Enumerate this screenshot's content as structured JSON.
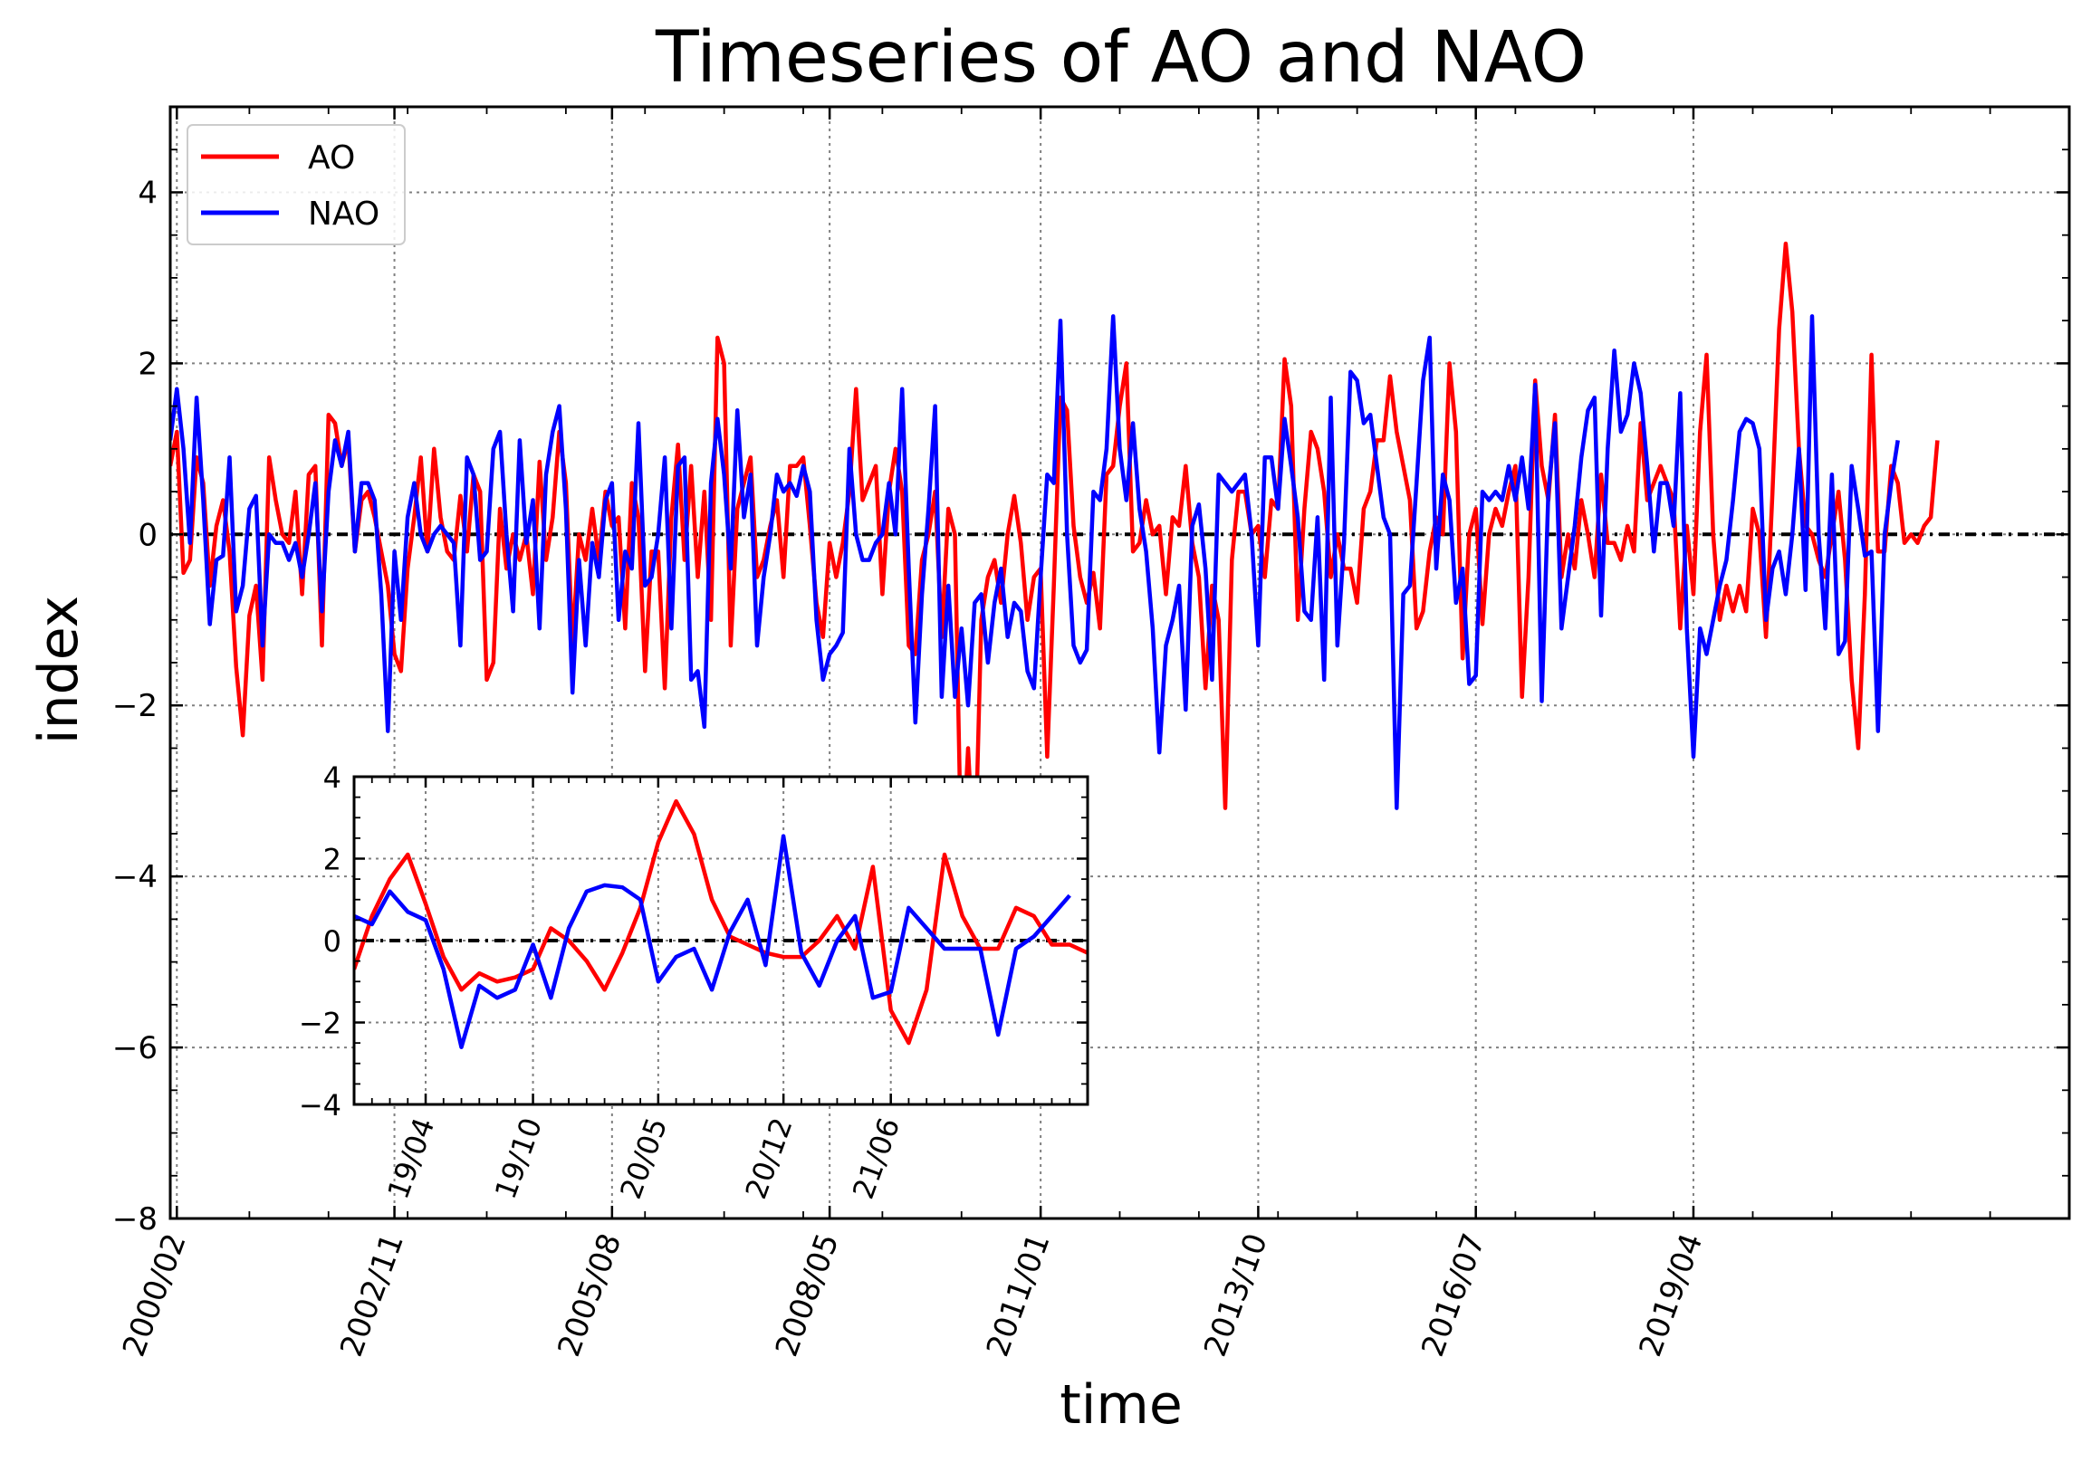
{
  "chart_data": [
    {
      "type": "line",
      "title": "Timeseries of AO and NAO",
      "xlabel": "time",
      "ylabel": "index",
      "xlim": [
        "2000-01",
        "2024-01"
      ],
      "ylim": [
        -8,
        5
      ],
      "yticks": [
        -8,
        -6,
        -4,
        -2,
        0,
        2,
        4
      ],
      "xticks": [
        "2000/02",
        "2002/11",
        "2005/08",
        "2008/05",
        "2011/01",
        "2013/10",
        "2016/07",
        "2019/04"
      ],
      "grid": true,
      "reference_line": 0,
      "legend": {
        "position": "top-left",
        "entries": [
          "AO",
          "NAO"
        ]
      },
      "colors": {
        "AO": "#ff0000",
        "NAO": "#0000ff",
        "reference": "#000000",
        "grid": "#808080"
      },
      "series": [
        {
          "name": "AO",
          "start": "2000-01",
          "frequency": "monthly",
          "values": [
            0.8,
            1.2,
            -0.45,
            -0.3,
            0.9,
            0.6,
            -0.6,
            0.1,
            0.4,
            -0.2,
            -1.55,
            -2.35,
            -0.95,
            -0.6,
            -1.7,
            0.9,
            0.4,
            0.0,
            -0.1,
            0.5,
            -0.7,
            0.7,
            0.8,
            -1.3,
            1.4,
            1.3,
            0.8,
            1.1,
            -0.2,
            0.4,
            0.5,
            0.2,
            -0.2,
            -0.6,
            -1.4,
            -1.6,
            -0.4,
            0.2,
            0.9,
            -0.2,
            1.0,
            0.2,
            -0.2,
            -0.3,
            0.45,
            -0.2,
            0.7,
            0.5,
            -1.7,
            -1.5,
            0.3,
            -0.4,
            0.0,
            -0.3,
            0.0,
            -0.7,
            0.85,
            -0.3,
            0.2,
            1.2,
            0.6,
            -1.3,
            0.0,
            -0.3,
            0.3,
            -0.3,
            0.5,
            0.1,
            0.2,
            -1.1,
            0.6,
            0.2,
            -1.6,
            -0.2,
            -0.2,
            -1.8,
            0.2,
            1.05,
            -0.3,
            0.8,
            -0.5,
            0.5,
            -1.0,
            2.3,
            2.0,
            -1.3,
            0.3,
            0.6,
            0.9,
            -0.5,
            -0.3,
            0.1,
            0.4,
            -0.5,
            0.8,
            0.8,
            0.9,
            0.1,
            -0.8,
            -1.2,
            -0.1,
            -0.5,
            -0.1,
            0.5,
            1.7,
            0.4,
            0.6,
            0.8,
            -0.7,
            0.5,
            1.0,
            0.5,
            -1.3,
            -1.4,
            -0.3,
            0.0,
            0.5,
            -1.2,
            0.3,
            0.0,
            -4.0,
            -2.5,
            -4.0,
            -1.0,
            -0.5,
            -0.3,
            -0.8,
            0.0,
            0.45,
            -0.1,
            -1.0,
            -0.5,
            -0.4,
            -2.6,
            -0.6,
            1.6,
            1.45,
            0.1,
            -0.5,
            -0.8,
            -0.45,
            -1.1,
            0.7,
            0.8,
            1.5,
            2.0,
            -0.2,
            -0.1,
            0.4,
            0.0,
            0.1,
            -0.7,
            0.2,
            0.1,
            0.8,
            -0.1,
            -0.5,
            -1.8,
            -0.6,
            -1.0,
            -3.2,
            -0.3,
            0.5,
            0.5,
            0.0,
            0.1,
            -0.5,
            0.4,
            0.3,
            2.05,
            1.5,
            -1.0,
            0.3,
            1.2,
            1.0,
            0.5,
            -0.5,
            0.0,
            -0.4,
            -0.4,
            -0.8,
            0.3,
            0.5,
            1.1,
            1.1,
            1.85,
            1.2,
            0.8,
            0.4,
            -1.1,
            -0.9,
            -0.2,
            0.2,
            0.0,
            2.0,
            1.2,
            -1.45,
            0.0,
            0.3,
            -1.05,
            0.0,
            0.3,
            0.1,
            0.5,
            0.8,
            -1.9,
            -0.5,
            1.8,
            0.8,
            0.4,
            1.4,
            -0.5,
            0.0,
            -0.4,
            0.4,
            0.0,
            -0.5,
            0.7,
            -0.1,
            -0.1,
            -0.3,
            0.1,
            -0.2,
            1.3,
            0.4,
            0.6,
            0.8,
            0.6,
            0.4,
            -1.1,
            0.1,
            -0.7,
            1.2,
            2.1,
            0.0,
            -1.0,
            -0.6,
            -0.9,
            -0.6,
            -0.9,
            0.3,
            0.0,
            -1.2,
            0.5,
            2.4,
            3.4,
            2.6,
            1.0,
            0.1,
            0.0,
            -0.3,
            -0.5,
            0.0,
            0.5,
            -0.3,
            -1.7,
            -2.5,
            -0.7,
            2.1,
            -0.2,
            -0.2,
            0.8,
            0.6,
            -0.1,
            0.0,
            -0.1,
            0.1,
            0.2,
            1.1
          ]
        },
        {
          "name": "NAO",
          "start": "2000-01",
          "frequency": "monthly",
          "values": [
            1.1,
            1.7,
            1.0,
            -0.1,
            1.6,
            0.4,
            -1.05,
            -0.3,
            -0.25,
            0.9,
            -0.9,
            -0.6,
            0.3,
            0.45,
            -1.3,
            0.0,
            -0.1,
            -0.1,
            -0.3,
            -0.1,
            -0.5,
            0.0,
            0.6,
            -0.9,
            0.5,
            1.1,
            0.8,
            1.2,
            -0.2,
            0.6,
            0.6,
            0.4,
            -0.7,
            -2.3,
            -0.2,
            -1.0,
            0.2,
            0.6,
            0.0,
            -0.2,
            0.0,
            0.1,
            0.0,
            -0.1,
            -1.3,
            0.9,
            0.7,
            -0.3,
            -0.2,
            1.0,
            1.2,
            0.0,
            -0.9,
            1.1,
            -0.1,
            0.4,
            -1.1,
            0.7,
            1.2,
            1.5,
            0.3,
            -1.85,
            -0.3,
            -1.3,
            -0.1,
            -0.5,
            0.4,
            0.6,
            -1.0,
            -0.2,
            -0.4,
            1.3,
            -0.6,
            -0.5,
            0.0,
            0.9,
            -1.1,
            0.8,
            0.9,
            -1.7,
            -1.6,
            -2.25,
            0.6,
            1.35,
            0.7,
            -0.4,
            1.45,
            0.2,
            0.7,
            -1.3,
            -0.5,
            0.0,
            0.7,
            0.5,
            0.6,
            0.45,
            0.8,
            0.5,
            -1.0,
            -1.7,
            -1.4,
            -1.3,
            -1.15,
            1.0,
            0.0,
            -0.3,
            -0.3,
            -0.1,
            0.0,
            0.6,
            0.0,
            1.7,
            -0.4,
            -2.2,
            -0.7,
            0.3,
            1.5,
            -1.9,
            -0.6,
            -1.9,
            -1.1,
            -2.0,
            -0.8,
            -0.7,
            -1.5,
            -0.8,
            -0.4,
            -1.2,
            -0.8,
            -0.9,
            -1.6,
            -1.8,
            -0.5,
            0.7,
            0.6,
            2.5,
            0.0,
            -1.3,
            -1.5,
            -1.35,
            0.5,
            0.4,
            1.0,
            2.55,
            1.0,
            0.4,
            1.3,
            0.3,
            -0.2,
            -1.1,
            -2.55,
            -1.3,
            -1.0,
            -0.6,
            -2.05,
            0.1,
            0.35,
            -0.4,
            -1.7,
            0.7,
            0.6,
            0.5,
            0.6,
            0.7,
            0.0,
            -1.3,
            0.9,
            0.9,
            0.3,
            1.35,
            0.8,
            0.2,
            -0.9,
            -1.0,
            0.2,
            -1.7,
            1.6,
            -1.3,
            -0.1,
            1.9,
            1.8,
            1.3,
            1.4,
            0.8,
            0.2,
            0.0,
            -3.2,
            -0.7,
            -0.6,
            0.6,
            1.8,
            2.3,
            -0.4,
            0.7,
            0.4,
            -0.8,
            -0.4,
            -1.75,
            -1.65,
            0.5,
            0.4,
            0.5,
            0.4,
            0.8,
            0.4,
            0.9,
            0.3,
            1.75,
            -1.95,
            0.5,
            1.3,
            -1.1,
            -0.5,
            0.1,
            0.9,
            1.45,
            1.6,
            -0.95,
            1.0,
            2.15,
            1.2,
            1.4,
            2.0,
            1.65,
            0.8,
            -0.2,
            0.6,
            0.6,
            0.1,
            1.65,
            -1.1,
            -2.6,
            -1.1,
            -1.4,
            -1.0,
            -0.6,
            -0.3,
            0.4,
            1.2,
            1.35,
            1.3,
            1.0,
            -1.0,
            -0.4,
            -0.2,
            -0.7,
            0.0,
            1.0,
            -0.65,
            2.55,
            0.0,
            -1.1,
            0.7,
            -1.4,
            -1.25,
            0.8,
            0.3,
            -0.25,
            -0.2,
            -2.3,
            0.0,
            0.6,
            1.1
          ]
        }
      ]
    },
    {
      "type": "line",
      "inset": true,
      "xlim": [
        "2018-12",
        "2022-05"
      ],
      "ylim": [
        -4,
        4
      ],
      "yticks": [
        -4,
        -2,
        0,
        2,
        4
      ],
      "xticks": [
        "19/04",
        "19/10",
        "20/05",
        "20/12",
        "21/06"
      ],
      "grid": true,
      "reference_line": 0,
      "series": [
        {
          "name": "AO",
          "start": "2018-12",
          "frequency": "monthly",
          "values": [
            -0.7,
            0.6,
            1.5,
            2.1,
            0.9,
            -0.4,
            -1.2,
            -0.8,
            -1.0,
            -0.9,
            -0.7,
            0.3,
            0.0,
            -0.5,
            -1.2,
            -0.3,
            0.8,
            2.4,
            3.4,
            2.6,
            1.0,
            0.1,
            -0.1,
            -0.3,
            -0.4,
            -0.4,
            0.0,
            0.6,
            -0.2,
            1.8,
            -1.7,
            -2.5,
            -1.2,
            2.1,
            0.6,
            -0.2,
            -0.2,
            0.8,
            0.6,
            -0.1,
            -0.1,
            -0.3,
            -0.2,
            0.0,
            0.1,
            0.3,
            0.8
          ]
        },
        {
          "name": "NAO",
          "start": "2018-12",
          "frequency": "monthly",
          "values": [
            0.6,
            0.4,
            1.2,
            0.7,
            0.5,
            -0.7,
            -2.6,
            -1.1,
            -1.4,
            -1.2,
            -0.1,
            -1.4,
            0.3,
            1.2,
            1.35,
            1.3,
            1.0,
            -1.0,
            -0.4,
            -0.2,
            -1.2,
            0.2,
            1.0,
            -0.6,
            2.55,
            -0.3,
            -1.1,
            0.0,
            0.6,
            -1.4,
            -1.25,
            0.8,
            0.3,
            -0.2,
            -0.2,
            -0.2,
            -2.3,
            -0.2,
            0.1,
            0.6,
            1.1
          ]
        }
      ]
    }
  ]
}
